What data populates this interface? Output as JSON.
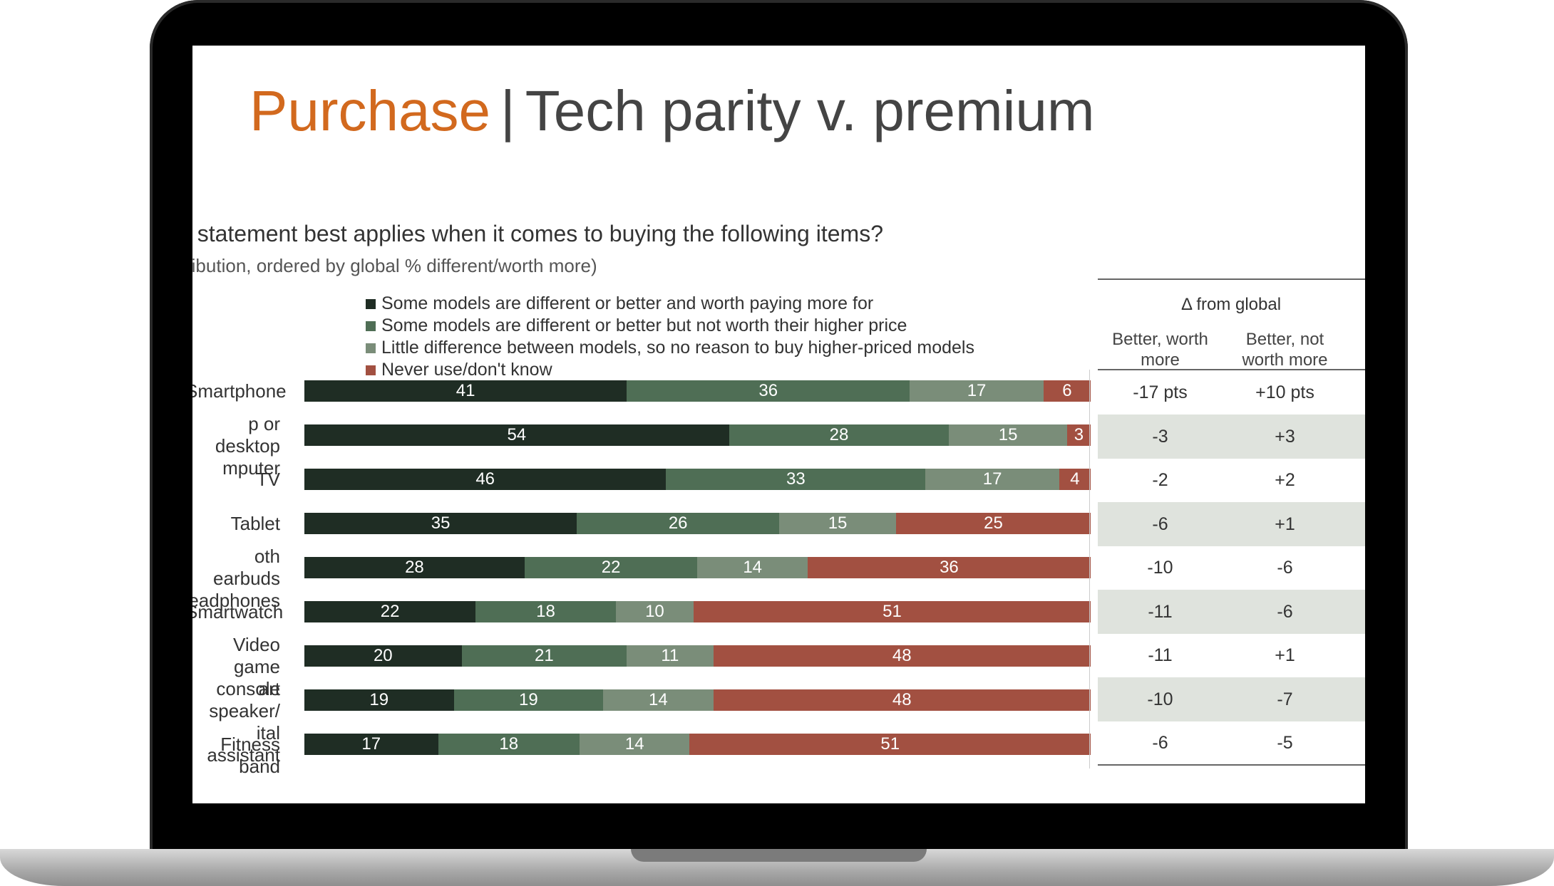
{
  "slide": {
    "title_accent": "Purchase",
    "title_sep": "|",
    "title_rest": "Tech parity v. premium",
    "question": "n statement best applies when it comes to buying the following items?",
    "note": "ribution, ordered by global % different/worth more)"
  },
  "colors": {
    "accent": "#d2691e",
    "s1": "#1f2d24",
    "s2": "#4f6e55",
    "s3": "#7a8d79",
    "s4": "#a25041",
    "shade": "#dfe3dd"
  },
  "delta": {
    "header": "Δ from global",
    "col1": "Better, worth\nmore",
    "col2": "Better, not\nworth more",
    "rows": [
      [
        "-17 pts",
        "+10 pts"
      ],
      [
        "-3",
        "+3"
      ],
      [
        "-2",
        "+2"
      ],
      [
        "-6",
        "+1"
      ],
      [
        "-10",
        "-6"
      ],
      [
        "-11",
        "-6"
      ],
      [
        "-11",
        "+1"
      ],
      [
        "-10",
        "-7"
      ],
      [
        "-6",
        "-5"
      ]
    ]
  },
  "chart_data": {
    "type": "bar",
    "orientation": "horizontal-stacked-100",
    "categories": [
      "Smartphone",
      "p or desktop\nmputer",
      "TV",
      "Tablet",
      "oth earbuds\neadphones",
      "Smartwatch",
      "Video game\nconsole",
      "art speaker/\nital assistant",
      "Fitness band"
    ],
    "series": [
      {
        "name": "Some models are different or better and worth paying more for",
        "values": [
          41,
          54,
          46,
          35,
          28,
          22,
          20,
          19,
          17
        ]
      },
      {
        "name": "Some models are different or better but not worth their higher price",
        "values": [
          36,
          28,
          33,
          26,
          22,
          18,
          21,
          19,
          18
        ]
      },
      {
        "name": "Little difference between models, so no reason to buy higher-priced models",
        "values": [
          17,
          15,
          17,
          15,
          14,
          10,
          11,
          14,
          14
        ]
      },
      {
        "name": "Never use/don't know",
        "values": [
          6,
          3,
          4,
          25,
          36,
          51,
          48,
          48,
          51
        ]
      }
    ]
  }
}
